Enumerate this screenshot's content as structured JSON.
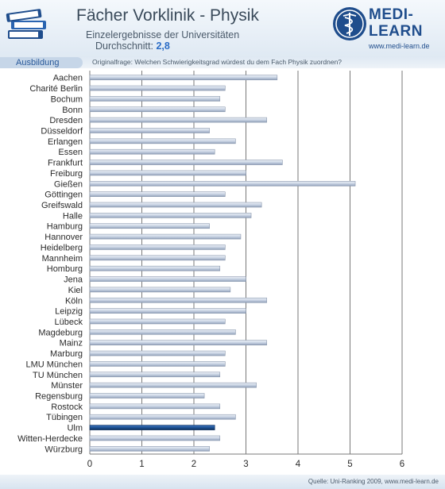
{
  "header": {
    "title": "Fächer Vorklinik - Physik",
    "subtitle_line1": "Einzelergebnisse der Universitäten",
    "subtitle_line2_prefix": "Durchschnitt:",
    "average": "2,8",
    "logo_line1": "MEDI-",
    "logo_line2": "LEARN",
    "logo_url": "www.medi-learn.de"
  },
  "section": {
    "label": "Ausbildung"
  },
  "question": "Originalfrage: Welchen Schwierigkeitsgrad würdest du dem Fach Physik zuordnen?",
  "footer": {
    "source": "Quelle: Uni-Ranking 2009, www.medi-learn.de"
  },
  "colors": {
    "bar": "#c4cfe0",
    "bar_highlight": "#1c4f90",
    "brand": "#1f4d8c"
  },
  "chart_data": {
    "type": "bar",
    "orientation": "horizontal",
    "categories": [
      "Aachen",
      "Charité Berlin",
      "Bochum",
      "Bonn",
      "Dresden",
      "Düsseldorf",
      "Erlangen",
      "Essen",
      "Frankfurt",
      "Freiburg",
      "Gießen",
      "Göttingen",
      "Greifswald",
      "Halle",
      "Hamburg",
      "Hannover",
      "Heidelberg",
      "Mannheim",
      "Homburg",
      "Jena",
      "Kiel",
      "Köln",
      "Leipzig",
      "Lübeck",
      "Magdeburg",
      "Mainz",
      "Marburg",
      "LMU München",
      "TU München",
      "Münster",
      "Regensburg",
      "Rostock",
      "Tübingen",
      "Ulm",
      "Witten-Herdecke",
      "Würzburg"
    ],
    "values": [
      3.6,
      2.6,
      2.5,
      2.6,
      3.4,
      2.3,
      2.8,
      2.4,
      3.7,
      3.0,
      5.1,
      2.6,
      3.3,
      3.1,
      2.3,
      2.9,
      2.6,
      2.6,
      2.5,
      3.0,
      2.7,
      3.4,
      3.0,
      2.6,
      2.8,
      3.4,
      2.6,
      2.6,
      2.5,
      3.2,
      2.2,
      2.5,
      2.8,
      2.4,
      2.5,
      2.3
    ],
    "highlight": "Ulm",
    "xlim": [
      0,
      6
    ],
    "xticks": [
      "0",
      "1",
      "2",
      "3",
      "4",
      "5",
      "6"
    ],
    "grid": true,
    "title": "",
    "xlabel": "",
    "ylabel": ""
  }
}
